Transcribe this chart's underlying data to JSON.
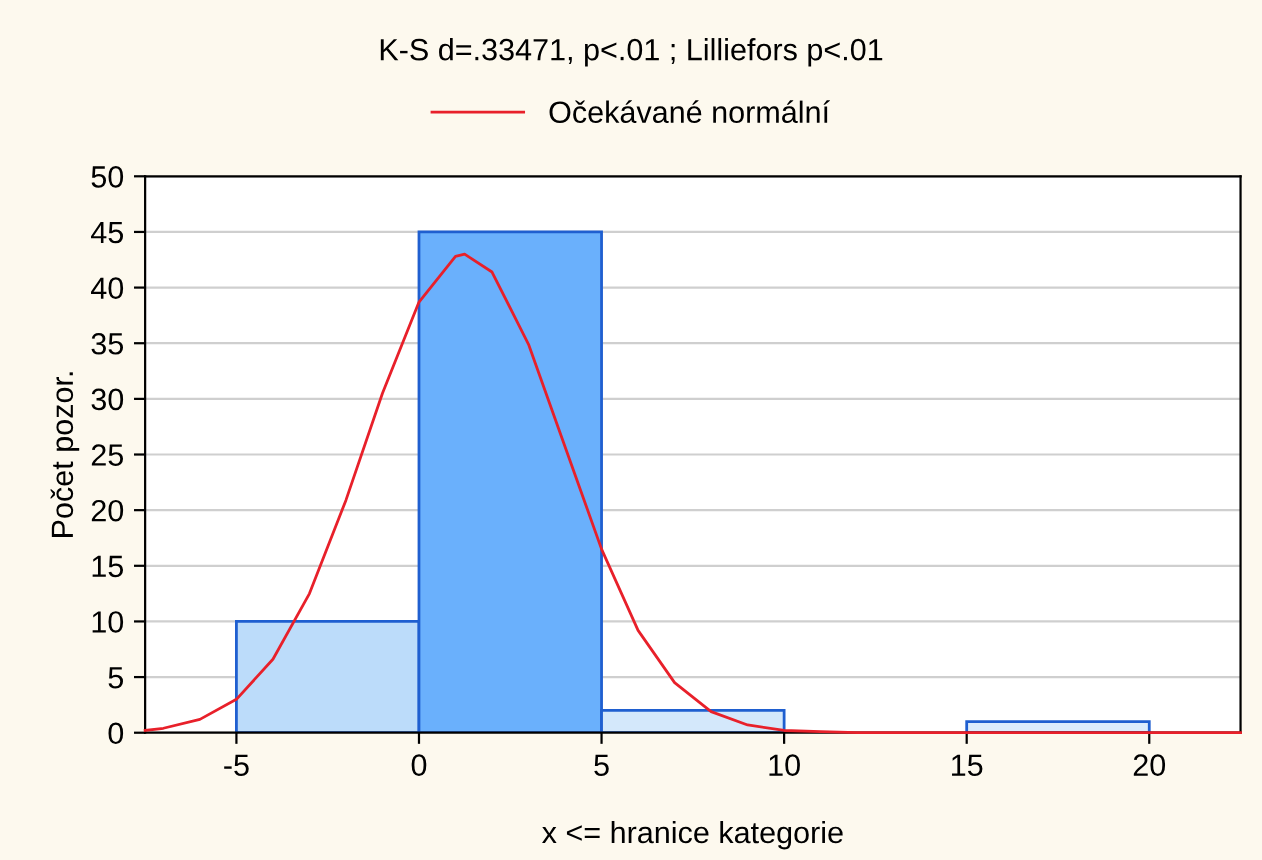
{
  "chart_data": {
    "type": "histogram",
    "title": "K-S d=.33471, p<.01 ; Lilliefors p<.01",
    "xlabel": "x <= hranice kategorie",
    "ylabel": "Počet pozor.",
    "bins": [
      -5,
      0,
      5,
      10,
      15,
      20
    ],
    "values": [
      10,
      45,
      2,
      0,
      1
    ],
    "colors": [
      "#bcdcfa",
      "#6ab0fc",
      "#d4e8fb",
      "#e6f1fd",
      "#dcecfc"
    ],
    "series": [
      {
        "name": "Očekávané normální",
        "type": "line",
        "color": "#e8202a",
        "x": [
          -7.5,
          -7,
          -6,
          -5,
          -4,
          -3,
          -2,
          -1,
          0,
          1,
          1.25,
          2,
          3,
          4,
          5,
          6,
          7,
          8,
          9,
          10,
          11,
          12,
          14,
          16,
          18,
          20,
          22.5
        ],
        "values": [
          0.2,
          0.4,
          1.2,
          3.0,
          6.6,
          12.5,
          20.9,
          30.5,
          38.7,
          42.8,
          43,
          41.4,
          34.9,
          25.7,
          16.5,
          9.2,
          4.5,
          1.9,
          0.7,
          0.2,
          0.1,
          0,
          0,
          0,
          0,
          0,
          0
        ]
      }
    ],
    "xlim": [
      -7.5,
      22.5
    ],
    "xticks": [
      -5,
      0,
      5,
      10,
      15,
      20
    ],
    "ylim": [
      0,
      50
    ],
    "yticks": [
      0,
      5,
      10,
      15,
      20,
      25,
      30,
      35,
      40,
      45,
      50
    ],
    "grid": "y",
    "legend": "top"
  }
}
